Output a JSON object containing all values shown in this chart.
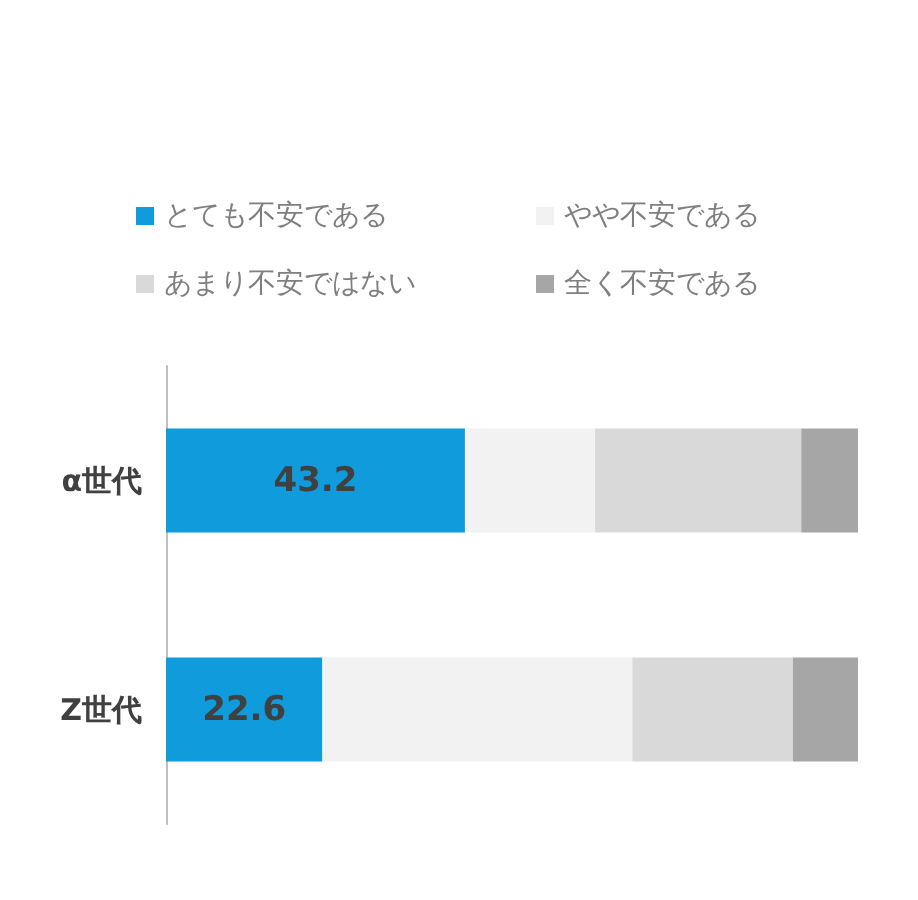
{
  "chart_data": {
    "type": "bar",
    "orientation": "horizontal",
    "stacked": true,
    "xlim": [
      0,
      100
    ],
    "tick_labels": false,
    "legend": "top",
    "categories": [
      "α世代",
      "Z世代"
    ],
    "series": [
      {
        "name": "とても不安である",
        "color": "#0f9bdc",
        "values": [
          43.2,
          22.6
        ],
        "value_labels": [
          "43.2",
          "22.6"
        ]
      },
      {
        "name": "やや不安である",
        "color": "#f2f2f2",
        "values": [
          18.8,
          44.8
        ]
      },
      {
        "name": "あまり不安ではない",
        "color": "#d9d9d9",
        "values": [
          29.8,
          23.2
        ]
      },
      {
        "name": "全く不安である",
        "color": "#a6a6a6",
        "values": [
          8.2,
          9.4
        ]
      }
    ]
  }
}
